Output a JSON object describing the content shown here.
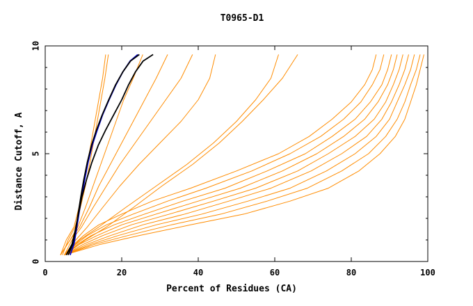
{
  "chart_data": {
    "type": "line",
    "title": "T0965-D1",
    "xlabel": "Percent of Residues (CA)",
    "ylabel": "Distance Cutoff, A",
    "xlim": [
      0,
      100
    ],
    "ylim": [
      0,
      10
    ],
    "xticks": [
      0,
      20,
      40,
      60,
      80,
      100
    ],
    "yticks": [
      0,
      5,
      10
    ],
    "grid": false,
    "legend": "none",
    "colors": {
      "orange": "#ff8c00",
      "black": "#000000",
      "blue": "#0000cc"
    },
    "series": [
      {
        "color": "#0000cc",
        "x": [
          6.5,
          7.5,
          8.2,
          8.8,
          9.5,
          10.3,
          11.2,
          12.3,
          13.6,
          15.0,
          16.7,
          18.5,
          20.3,
          22.2,
          24.2
        ],
        "y": [
          0.3,
          0.8,
          1.5,
          2.2,
          3.0,
          3.8,
          4.6,
          5.4,
          6.1,
          6.8,
          7.5,
          8.2,
          8.8,
          9.3,
          9.6
        ]
      },
      {
        "color": "#000000",
        "x": [
          6.0,
          7.2,
          8.0,
          8.6,
          9.3,
          10.1,
          11.0,
          12.1,
          13.4,
          14.9,
          16.6,
          18.4,
          20.3,
          22.3,
          24.6
        ],
        "y": [
          0.3,
          0.8,
          1.5,
          2.2,
          3.0,
          3.8,
          4.6,
          5.4,
          6.1,
          6.8,
          7.5,
          8.2,
          8.8,
          9.3,
          9.6
        ]
      },
      {
        "color": "#000000",
        "x": [
          5.5,
          7.0,
          7.9,
          8.7,
          9.6,
          10.8,
          12.2,
          13.9,
          15.8,
          17.9,
          20.0,
          21.8,
          23.6,
          25.6,
          28.2
        ],
        "y": [
          0.3,
          0.8,
          1.5,
          2.2,
          3.0,
          3.8,
          4.6,
          5.4,
          6.1,
          6.8,
          7.5,
          8.2,
          8.8,
          9.3,
          9.6
        ]
      }
    ],
    "series_orange": [
      {
        "x": [
          5.0,
          7.5,
          10.0,
          14.0,
          20.0,
          28.0,
          38.0,
          50.0,
          61.0,
          69.0,
          75.0,
          80.0,
          83.5,
          85.5,
          86.5
        ],
        "y": [
          0.3,
          0.8,
          1.2,
          1.7,
          2.2,
          2.8,
          3.4,
          4.2,
          5.0,
          5.8,
          6.6,
          7.4,
          8.2,
          8.9,
          9.6
        ]
      },
      {
        "x": [
          5.0,
          8.0,
          11.0,
          16.0,
          23.0,
          32.0,
          42.0,
          54.0,
          64.0,
          72.0,
          78.0,
          82.5,
          85.5,
          87.5,
          88.5
        ],
        "y": [
          0.3,
          0.8,
          1.2,
          1.7,
          2.2,
          2.8,
          3.4,
          4.2,
          5.0,
          5.8,
          6.6,
          7.4,
          8.2,
          8.9,
          9.6
        ]
      },
      {
        "x": [
          5.0,
          8.5,
          12.0,
          18.0,
          26.0,
          36.0,
          47.0,
          58.0,
          68.0,
          75.0,
          81.0,
          85.0,
          88.0,
          89.5,
          90.5
        ],
        "y": [
          0.3,
          0.8,
          1.2,
          1.7,
          2.2,
          2.8,
          3.4,
          4.2,
          5.0,
          5.8,
          6.6,
          7.4,
          8.2,
          8.9,
          9.6
        ]
      },
      {
        "x": [
          5.0,
          9.0,
          13.5,
          20.0,
          29.0,
          40.0,
          51.0,
          62.0,
          71.0,
          78.0,
          83.5,
          87.0,
          89.5,
          91.0,
          92.0
        ],
        "y": [
          0.3,
          0.8,
          1.2,
          1.7,
          2.2,
          2.8,
          3.4,
          4.2,
          5.0,
          5.8,
          6.6,
          7.4,
          8.2,
          8.9,
          9.6
        ]
      },
      {
        "x": [
          5.0,
          10.0,
          15.0,
          22.5,
          32.5,
          44.0,
          55.0,
          66.0,
          74.0,
          81.0,
          86.0,
          89.0,
          91.0,
          92.5,
          93.5
        ],
        "y": [
          0.3,
          0.8,
          1.2,
          1.7,
          2.2,
          2.8,
          3.4,
          4.2,
          5.0,
          5.8,
          6.6,
          7.4,
          8.2,
          8.9,
          9.6
        ]
      },
      {
        "x": [
          5.0,
          11.0,
          17.0,
          25.5,
          36.5,
          48.0,
          59.0,
          69.5,
          77.5,
          84.0,
          88.0,
          90.5,
          92.5,
          94.0,
          95.0
        ],
        "y": [
          0.3,
          0.8,
          1.2,
          1.7,
          2.2,
          2.8,
          3.4,
          4.2,
          5.0,
          5.8,
          6.6,
          7.4,
          8.2,
          8.9,
          9.6
        ]
      },
      {
        "x": [
          5.0,
          12.0,
          19.0,
          29.0,
          41.0,
          53.0,
          64.0,
          73.5,
          81.0,
          86.5,
          90.0,
          92.0,
          94.0,
          95.5,
          96.5
        ],
        "y": [
          0.3,
          0.8,
          1.2,
          1.7,
          2.2,
          2.8,
          3.4,
          4.2,
          5.0,
          5.8,
          6.6,
          7.4,
          8.2,
          8.9,
          9.6
        ]
      },
      {
        "x": [
          5.0,
          13.0,
          21.5,
          33.0,
          46.0,
          58.0,
          68.5,
          77.5,
          84.5,
          89.0,
          92.0,
          94.0,
          95.5,
          97.0,
          98.0
        ],
        "y": [
          0.3,
          0.8,
          1.2,
          1.7,
          2.2,
          2.8,
          3.4,
          4.2,
          5.0,
          5.8,
          6.6,
          7.4,
          8.2,
          8.9,
          9.6
        ]
      },
      {
        "x": [
          5.0,
          14.5,
          24.5,
          38.0,
          52.0,
          64.0,
          74.0,
          82.0,
          87.5,
          91.5,
          94.0,
          95.5,
          97.0,
          98.0,
          99.0
        ],
        "y": [
          0.3,
          0.8,
          1.2,
          1.7,
          2.2,
          2.8,
          3.4,
          4.2,
          5.0,
          5.8,
          6.6,
          7.4,
          8.2,
          8.9,
          9.6
        ]
      },
      {
        "x": [
          4.0,
          5.5,
          7.5,
          8.8,
          10.0,
          11.0,
          12.0,
          13.0,
          14.0,
          15.0,
          15.8
        ],
        "y": [
          0.3,
          1.0,
          1.6,
          2.5,
          3.5,
          4.5,
          5.5,
          6.5,
          7.5,
          8.5,
          9.6
        ]
      },
      {
        "x": [
          4.5,
          6.0,
          7.8,
          9.2,
          10.5,
          11.6,
          12.6,
          13.6,
          14.6,
          15.6,
          16.5
        ],
        "y": [
          0.3,
          1.0,
          1.6,
          2.5,
          3.5,
          4.5,
          5.5,
          6.5,
          7.5,
          8.5,
          9.6
        ]
      },
      {
        "x": [
          4.0,
          6.5,
          8.5,
          10.5,
          12.5,
          14.5,
          16.5,
          18.5,
          20.5,
          23.0,
          25.5
        ],
        "y": [
          0.3,
          1.0,
          1.6,
          2.5,
          3.5,
          4.5,
          5.5,
          6.5,
          7.5,
          8.5,
          9.6
        ]
      },
      {
        "x": [
          4.0,
          6.5,
          9.0,
          11.5,
          14.0,
          17.0,
          20.0,
          23.0,
          26.0,
          29.0,
          32.0
        ],
        "y": [
          0.3,
          1.0,
          1.6,
          2.5,
          3.5,
          4.5,
          5.5,
          6.5,
          7.5,
          8.5,
          9.6
        ]
      },
      {
        "x": [
          5.0,
          7.0,
          9.5,
          12.5,
          16.0,
          19.5,
          23.5,
          27.5,
          31.5,
          35.5,
          38.5
        ],
        "y": [
          0.3,
          1.0,
          1.6,
          2.5,
          3.5,
          4.5,
          5.5,
          6.5,
          7.5,
          8.5,
          9.6
        ]
      },
      {
        "x": [
          5.0,
          8.0,
          11.0,
          15.0,
          19.5,
          24.5,
          30.0,
          35.5,
          40.0,
          43.0,
          44.5
        ],
        "y": [
          0.3,
          1.0,
          1.6,
          2.5,
          3.5,
          4.5,
          5.5,
          6.5,
          7.5,
          8.5,
          9.6
        ]
      },
      {
        "x": [
          5.0,
          9.0,
          14.0,
          21.0,
          29.0,
          37.0,
          44.0,
          50.0,
          55.0,
          59.0,
          61.0
        ],
        "y": [
          0.3,
          1.0,
          1.6,
          2.5,
          3.5,
          4.5,
          5.5,
          6.5,
          7.5,
          8.5,
          9.6
        ]
      },
      {
        "x": [
          5.0,
          10.5,
          16.0,
          23.0,
          30.5,
          38.5,
          45.5,
          51.5,
          57.0,
          62.0,
          66.0
        ],
        "y": [
          0.3,
          1.0,
          1.6,
          2.5,
          3.5,
          4.5,
          5.5,
          6.5,
          7.5,
          8.5,
          9.6
        ]
      }
    ]
  }
}
